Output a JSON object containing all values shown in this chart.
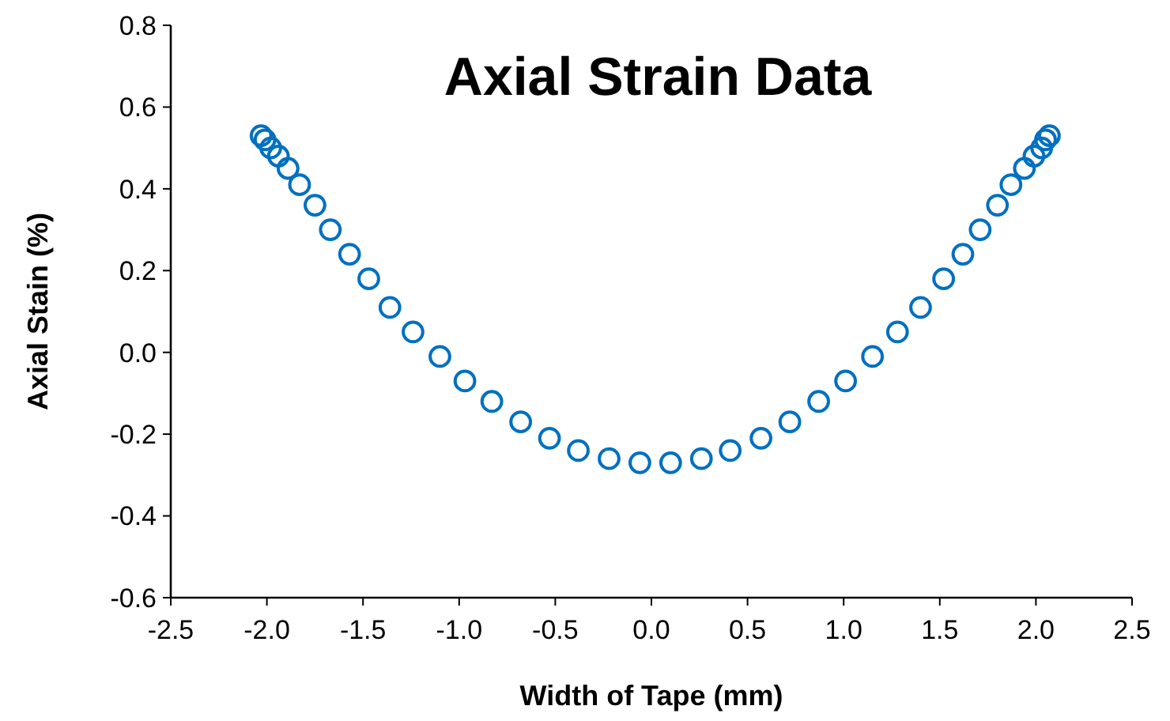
{
  "chart_data": {
    "type": "scatter",
    "title": "Axial Strain Data",
    "xlabel": "Width of Tape (mm)",
    "ylabel": "Axial Stain (%)",
    "xlim": [
      -2.5,
      2.5
    ],
    "xticks": [
      {
        "value": -2.5,
        "label": "-2.5"
      },
      {
        "value": -2,
        "label": "-2.0"
      },
      {
        "value": -1.5,
        "label": "-1.5"
      },
      {
        "value": -1,
        "label": "-1.0"
      },
      {
        "value": -0.5,
        "label": "-0.5"
      },
      {
        "value": 0,
        "label": "0.0"
      },
      {
        "value": 0.5,
        "label": "0.5"
      },
      {
        "value": 1,
        "label": "1.0"
      },
      {
        "value": 1.5,
        "label": "1.5"
      },
      {
        "value": 2,
        "label": "2.0"
      },
      {
        "value": 2.5,
        "label": "2.5"
      }
    ],
    "ylim": [
      -0.6,
      0.8
    ],
    "yticks": [
      {
        "value": -0.6,
        "label": "-0.6"
      },
      {
        "value": -0.4,
        "label": "-0.4"
      },
      {
        "value": -0.2,
        "label": "-0.2"
      },
      {
        "value": 0,
        "label": "0.0"
      },
      {
        "value": 0.2,
        "label": "0.2"
      },
      {
        "value": 0.4,
        "label": "0.4"
      },
      {
        "value": 0.6,
        "label": "0.6"
      },
      {
        "value": 0.8,
        "label": "0.8"
      }
    ],
    "marker": "circle",
    "grid": false,
    "series": [
      {
        "color": "#0070c0",
        "x": [
          -2.03,
          -2.01,
          -1.98,
          -1.94,
          -1.89,
          -1.83,
          -1.75,
          -1.67,
          -1.57,
          -1.47,
          -1.36,
          -1.24,
          -1.1,
          -0.97,
          -0.83,
          -0.68,
          -0.53,
          -0.38,
          -0.22,
          -0.06,
          0.1,
          0.26,
          0.41,
          0.57,
          0.72,
          0.87,
          1.01,
          1.15,
          1.28,
          1.4,
          1.52,
          1.62,
          1.71,
          1.8,
          1.87,
          1.94,
          1.99,
          2.03,
          2.05,
          2.07
        ],
        "values": [
          0.53,
          0.52,
          0.5,
          0.48,
          0.45,
          0.41,
          0.36,
          0.3,
          0.24,
          0.18,
          0.11,
          0.05,
          -0.01,
          -0.07,
          -0.12,
          -0.17,
          -0.21,
          -0.24,
          -0.26,
          -0.27,
          -0.27,
          -0.26,
          -0.24,
          -0.21,
          -0.17,
          -0.12,
          -0.07,
          -0.01,
          0.05,
          0.11,
          0.18,
          0.24,
          0.3,
          0.36,
          0.41,
          0.45,
          0.48,
          0.5,
          0.52,
          0.53
        ]
      }
    ]
  }
}
